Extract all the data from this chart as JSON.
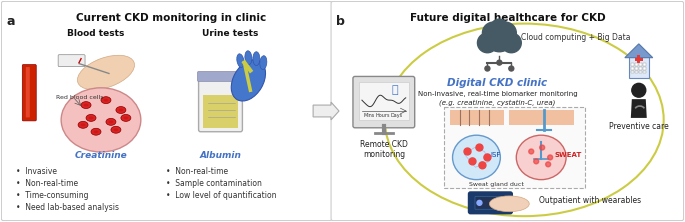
{
  "bg_color": "#ffffff",
  "panel_a_border": "#cccccc",
  "panel_b_border": "#cccccc",
  "title_a": "Current CKD monitoring in clinic",
  "title_b": "Future digital healthcare for CKD",
  "label_a": "a",
  "label_b": "b",
  "blood_tests_label": "Blood tests",
  "urine_tests_label": "Urine tests",
  "creatinine_label": "Creatinine",
  "albumin_label": "Albumin",
  "creatinine_color": "#4472c4",
  "albumin_color": "#4472c4",
  "bullet_left": [
    "Invasive",
    "Non-real-time",
    "Time-consuming",
    "Need lab-based analysis"
  ],
  "bullet_right": [
    "Non-real-time",
    "Sample contamination",
    "Low level of quantification"
  ],
  "digital_ckd_label": "Digital CKD clinic",
  "digital_ckd_color": "#4472c4",
  "subtitle_b1": "Non-invasive, real-time biomarker monitoring",
  "subtitle_b2": "(e.g. creatinine, cystatin-C, urea)",
  "cloud_label": "Cloud computing + Big Data",
  "remote_label": "Remote CKD\nmonitoring",
  "preventive_label": "Preventive care",
  "outpatient_label": "Outpatient with wearables",
  "isf_label": "ISF",
  "sweat_label": "SWEAT",
  "sweat_gland_label": "Sweat gland duct",
  "red_blood_label": "Red blood cells",
  "ellipse_color": "#e8f5a0",
  "skin_color": "#f0c8a0",
  "cloud_color": "#455a64",
  "arrow_color": "#aaaaaa",
  "monitor_color": "#9e9e9e",
  "isf_circle_color": "#d0e8f8",
  "sweat_circle_color": "#f8d0d0",
  "wearable_color": "#1a3a6b",
  "doctor_color": "#222222",
  "hospital_color": "#5b8dd9",
  "cross_color": "#e53935",
  "bullet_color": "#333333",
  "text_color": "#000000",
  "panel_a_fill": "#ffffff",
  "panel_b_fill": "#ffffff",
  "dashed_box_color": "#aaaaaa"
}
